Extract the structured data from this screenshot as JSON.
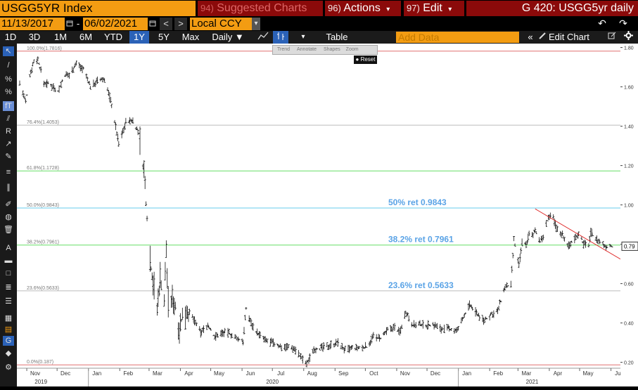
{
  "header": {
    "ticker_field": "USGG5YR Index",
    "suggested": {
      "num": "94)",
      "label": "Suggested Charts"
    },
    "actions": {
      "num": "96)",
      "label": "Actions",
      "caret": "▾"
    },
    "edit": {
      "num": "97)",
      "label": "Edit",
      "caret": "▾"
    },
    "graph_title": "G 420: USGG5yr daily"
  },
  "toolbar2": {
    "start_date": "11/13/2017",
    "dash": "-",
    "end_date": "06/02/2021",
    "currency": "Local CCY",
    "caret": "▾",
    "prev": "<",
    "next": ">"
  },
  "toolbar3": {
    "ranges": [
      "1D",
      "3D",
      "1M",
      "6M",
      "YTD",
      "1Y",
      "5Y",
      "Max"
    ],
    "active_range": "1Y",
    "frequency": "Daily ▼",
    "table_label": "Table",
    "add_data_placeholder": "Add Data",
    "edit_chart_label": "Edit Chart",
    "menu_caret": "▾"
  },
  "chart_overlay": {
    "menu_items": [
      "Trend",
      "Annotate",
      "Shapes",
      "Zoom"
    ],
    "reset_label": "Reset"
  },
  "chart_data": {
    "type": "candlestick",
    "series_name": "USGG5YR Index",
    "frequency": "daily",
    "y_range": [
      0.17,
      1.82
    ],
    "y_ticks": [
      "0.20",
      "0.40",
      "0.60",
      "0.80",
      "1.00",
      "1.20",
      "1.40",
      "1.60",
      "1.80"
    ],
    "last_value": "0.79",
    "x_month_labels": [
      "Nov",
      "Dec",
      "Jan",
      "Feb",
      "Mar",
      "Apr",
      "May",
      "Jun",
      "Jul",
      "Aug",
      "Sep",
      "Oct",
      "Nov",
      "Dec",
      "Jan",
      "Feb",
      "Mar",
      "Apr",
      "May",
      "Jun"
    ],
    "x_year_labels": [
      "2019",
      "2020",
      "2021"
    ],
    "fib_levels": [
      {
        "label": "100.0%(1.7816)",
        "value": 1.7816,
        "color": "#e07070"
      },
      {
        "label": "76.4%(1.4053)",
        "value": 1.4053,
        "color": "#bbbbbb"
      },
      {
        "label": "61.8%(1.1728)",
        "value": 1.1728,
        "color": "#66dd66"
      },
      {
        "label": "50.0%(0.9843)",
        "value": 0.9843,
        "color": "#66ccee"
      },
      {
        "label": "38.2%(0.7961)",
        "value": 0.7961,
        "color": "#66dd66"
      },
      {
        "label": "23.6%(0.5633)",
        "value": 0.5633,
        "color": "#bbbbbb"
      },
      {
        "label": "0.0%(0.187)",
        "value": 0.187,
        "color": "#e07070"
      }
    ],
    "annotations": [
      {
        "text": "50% ret 0.9843",
        "value": 0.9843
      },
      {
        "text": "38.2% ret 0.7961",
        "value": 0.7961
      },
      {
        "text": "23.6% ret 0.5633",
        "value": 0.5633
      }
    ],
    "trendline": {
      "from": {
        "date": "2021-03-18",
        "value": 0.98
      },
      "to": {
        "date": "2021-06-02",
        "value": 0.75
      },
      "color": "#e03030"
    },
    "x_start": "2019-10-25",
    "x_end": "2021-06-02",
    "points": [
      [
        "2019-10-25",
        1.62
      ],
      [
        "2019-10-31",
        1.52
      ],
      [
        "2019-11-04",
        1.66
      ],
      [
        "2019-11-08",
        1.73
      ],
      [
        "2019-11-12",
        1.74
      ],
      [
        "2019-11-18",
        1.62
      ],
      [
        "2019-11-25",
        1.61
      ],
      [
        "2019-12-02",
        1.58
      ],
      [
        "2019-12-09",
        1.66
      ],
      [
        "2019-12-13",
        1.66
      ],
      [
        "2019-12-20",
        1.72
      ],
      [
        "2019-12-27",
        1.69
      ],
      [
        "2020-01-03",
        1.6
      ],
      [
        "2020-01-10",
        1.63
      ],
      [
        "2020-01-17",
        1.64
      ],
      [
        "2020-01-24",
        1.51
      ],
      [
        "2020-01-31",
        1.31
      ],
      [
        "2020-02-07",
        1.42
      ],
      [
        "2020-02-14",
        1.43
      ],
      [
        "2020-02-20",
        1.36
      ],
      [
        "2020-02-25",
        1.17
      ],
      [
        "2020-02-28",
        0.94
      ],
      [
        "2020-03-03",
        0.68
      ],
      [
        "2020-03-06",
        0.58
      ],
      [
        "2020-03-09",
        0.46
      ],
      [
        "2020-03-12",
        0.64
      ],
      [
        "2020-03-16",
        0.51
      ],
      [
        "2020-03-18",
        0.78
      ],
      [
        "2020-03-20",
        0.5
      ],
      [
        "2020-03-25",
        0.52
      ],
      [
        "2020-03-31",
        0.38
      ],
      [
        "2020-04-07",
        0.47
      ],
      [
        "2020-04-14",
        0.42
      ],
      [
        "2020-04-21",
        0.35
      ],
      [
        "2020-04-28",
        0.39
      ],
      [
        "2020-05-05",
        0.33
      ],
      [
        "2020-05-12",
        0.35
      ],
      [
        "2020-05-19",
        0.35
      ],
      [
        "2020-05-26",
        0.32
      ],
      [
        "2020-06-02",
        0.31
      ],
      [
        "2020-06-05",
        0.47
      ],
      [
        "2020-06-10",
        0.4
      ],
      [
        "2020-06-16",
        0.35
      ],
      [
        "2020-06-24",
        0.31
      ],
      [
        "2020-07-01",
        0.3
      ],
      [
        "2020-07-09",
        0.28
      ],
      [
        "2020-07-16",
        0.28
      ],
      [
        "2020-07-23",
        0.27
      ],
      [
        "2020-07-30",
        0.22
      ],
      [
        "2020-08-04",
        0.19
      ],
      [
        "2020-08-11",
        0.27
      ],
      [
        "2020-08-17",
        0.27
      ],
      [
        "2020-08-24",
        0.28
      ],
      [
        "2020-08-28",
        0.29
      ],
      [
        "2020-09-04",
        0.3
      ],
      [
        "2020-09-11",
        0.26
      ],
      [
        "2020-09-18",
        0.27
      ],
      [
        "2020-09-25",
        0.27
      ],
      [
        "2020-10-02",
        0.28
      ],
      [
        "2020-10-09",
        0.33
      ],
      [
        "2020-10-16",
        0.32
      ],
      [
        "2020-10-23",
        0.36
      ],
      [
        "2020-10-30",
        0.38
      ],
      [
        "2020-11-04",
        0.35
      ],
      [
        "2020-11-10",
        0.46
      ],
      [
        "2020-11-17",
        0.39
      ],
      [
        "2020-11-24",
        0.39
      ],
      [
        "2020-12-01",
        0.39
      ],
      [
        "2020-12-08",
        0.39
      ],
      [
        "2020-12-15",
        0.37
      ],
      [
        "2020-12-22",
        0.37
      ],
      [
        "2020-12-31",
        0.36
      ],
      [
        "2021-01-06",
        0.43
      ],
      [
        "2021-01-12",
        0.49
      ],
      [
        "2021-01-19",
        0.45
      ],
      [
        "2021-01-26",
        0.41
      ],
      [
        "2021-02-02",
        0.44
      ],
      [
        "2021-02-09",
        0.46
      ],
      [
        "2021-02-16",
        0.58
      ],
      [
        "2021-02-22",
        0.59
      ],
      [
        "2021-02-25",
        0.82
      ],
      [
        "2021-03-02",
        0.69
      ],
      [
        "2021-03-05",
        0.81
      ],
      [
        "2021-03-09",
        0.8
      ],
      [
        "2021-03-12",
        0.85
      ],
      [
        "2021-03-16",
        0.84
      ],
      [
        "2021-03-18",
        0.88
      ],
      [
        "2021-03-23",
        0.81
      ],
      [
        "2021-03-26",
        0.84
      ],
      [
        "2021-03-31",
        0.94
      ],
      [
        "2021-04-05",
        0.93
      ],
      [
        "2021-04-09",
        0.87
      ],
      [
        "2021-04-14",
        0.85
      ],
      [
        "2021-04-20",
        0.79
      ],
      [
        "2021-04-26",
        0.83
      ],
      [
        "2021-04-30",
        0.86
      ],
      [
        "2021-05-05",
        0.8
      ],
      [
        "2021-05-10",
        0.8
      ],
      [
        "2021-05-12",
        0.86
      ],
      [
        "2021-05-17",
        0.83
      ],
      [
        "2021-05-21",
        0.81
      ],
      [
        "2021-05-26",
        0.79
      ],
      [
        "2021-06-02",
        0.79
      ]
    ]
  }
}
